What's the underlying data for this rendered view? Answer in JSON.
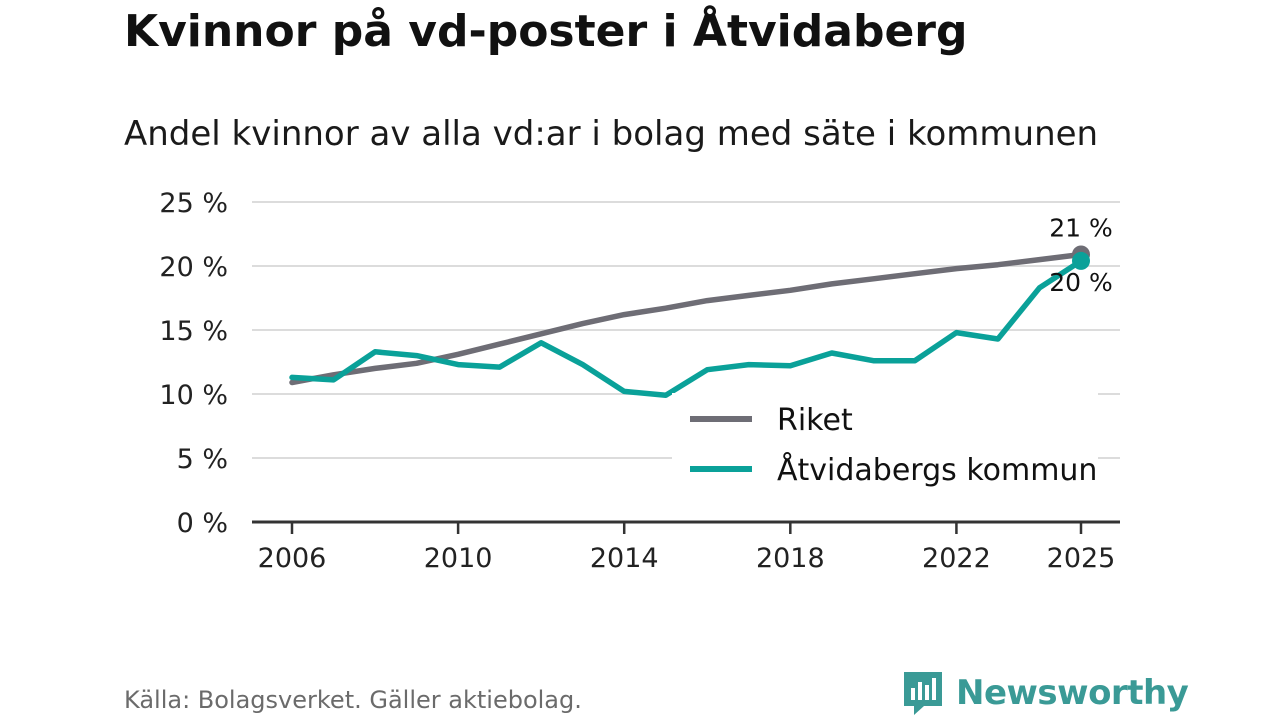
{
  "chart_data": {
    "type": "line",
    "title": "Kvinnor på vd-poster i Åtvidaberg",
    "subtitle": "Andel kvinnor av alla vd:ar i bolag med säte i kommunen",
    "xlabel": "",
    "ylabel": "",
    "xlim": [
      2006,
      2025
    ],
    "ylim": [
      0,
      25
    ],
    "x_ticks": [
      "2006",
      "2010",
      "2014",
      "2018",
      "2022",
      "2025"
    ],
    "y_ticks": [
      "0 %",
      "5 %",
      "10 %",
      "15 %",
      "20 %",
      "25 %"
    ],
    "y_tick_values": [
      0,
      5,
      10,
      15,
      20,
      25
    ],
    "x_tick_values": [
      2006,
      2010,
      2014,
      2018,
      2022,
      2025
    ],
    "x": [
      2006,
      2007,
      2008,
      2009,
      2010,
      2011,
      2012,
      2013,
      2014,
      2015,
      2016,
      2017,
      2018,
      2019,
      2020,
      2021,
      2022,
      2023,
      2024,
      2025
    ],
    "series": [
      {
        "name": "Riket",
        "color": "#6e6d75",
        "values": [
          10.9,
          11.5,
          12.0,
          12.4,
          13.1,
          13.9,
          14.7,
          15.5,
          16.2,
          16.7,
          17.3,
          17.7,
          18.1,
          18.6,
          19.0,
          19.4,
          19.8,
          20.1,
          20.5,
          20.9
        ],
        "end_label": "21 %"
      },
      {
        "name": "Åtvidabergs kommun",
        "color": "#0aa199",
        "values": [
          11.3,
          11.1,
          13.3,
          13.0,
          12.3,
          12.1,
          14.0,
          12.3,
          10.2,
          9.9,
          11.9,
          12.3,
          12.2,
          13.2,
          12.6,
          12.6,
          14.8,
          14.3,
          18.3,
          20.4
        ],
        "end_label": "20 %"
      }
    ],
    "legend": [
      "Riket",
      "Åtvidabergs kommun"
    ],
    "legend_position": "inside-bottom-right",
    "grid": true,
    "source": "Källa: Bolagsverket. Gäller aktiebolag."
  },
  "brand": {
    "name": "Newsworthy",
    "color": "#3a9a96",
    "icon": "newsworthy-logo-icon"
  }
}
